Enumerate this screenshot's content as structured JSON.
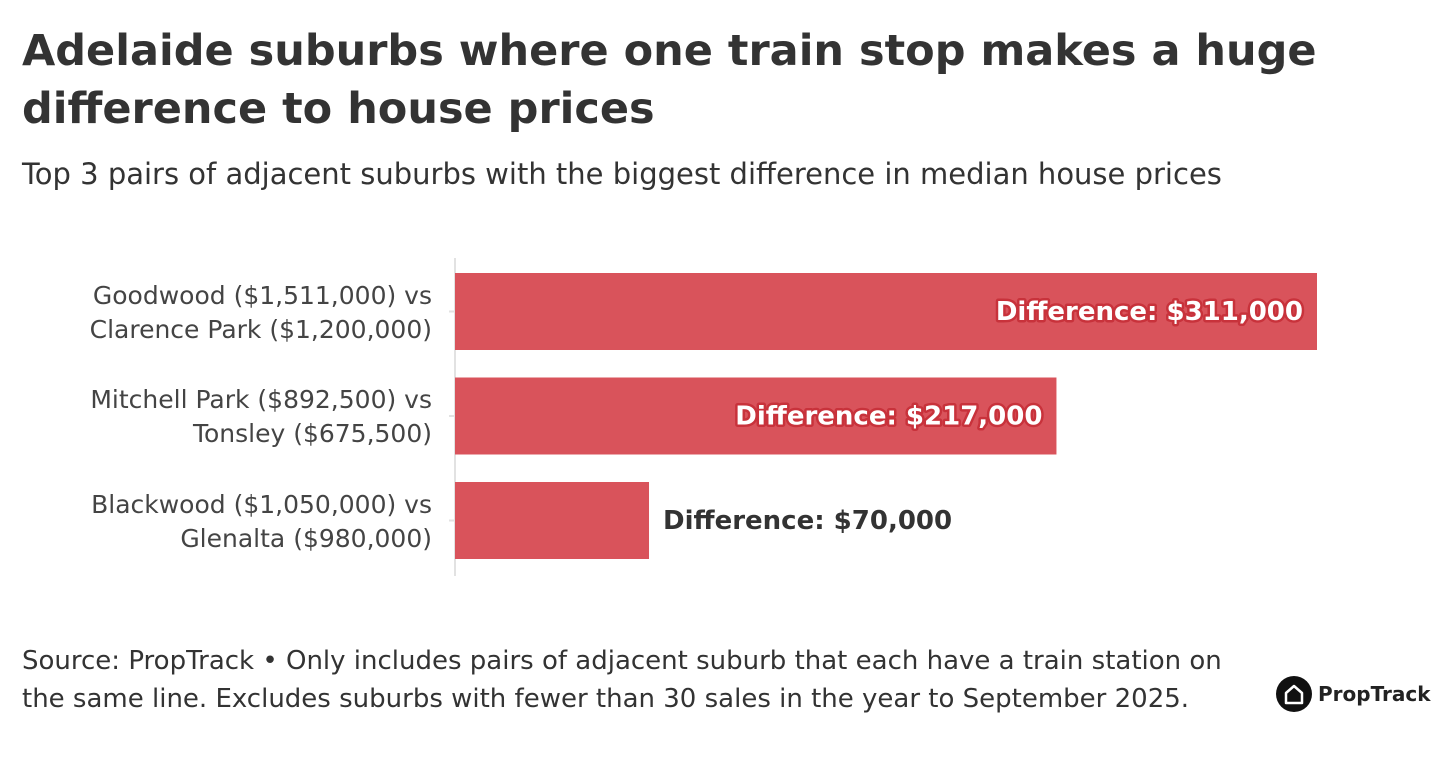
{
  "chart_data": {
    "type": "bar",
    "orientation": "horizontal",
    "title": "Adelaide suburbs where one train stop makes a huge difference to house prices",
    "subtitle": "Top 3 pairs of adjacent suburbs with the biggest difference in median house prices",
    "categories": [
      "Goodwood ($1,511,000) vs\nClarence Park ($1,200,000)",
      "Mitchell Park ($892,500) vs\nTonsley ($675,500)",
      "Blackwood ($1,050,000) vs\nGlenalta ($980,000)"
    ],
    "values": [
      311000,
      217000,
      70000
    ],
    "value_labels": [
      "Difference: $311,000",
      "Difference: $217,000",
      "Difference: $70,000"
    ],
    "color": "#d9535b",
    "source": "Source: PropTrack • Only includes pairs of adjacent suburb that each have a train station on the same line. Excludes suburbs with fewer than 30 sales in the year to September 2025.",
    "logo": "PropTrack"
  }
}
